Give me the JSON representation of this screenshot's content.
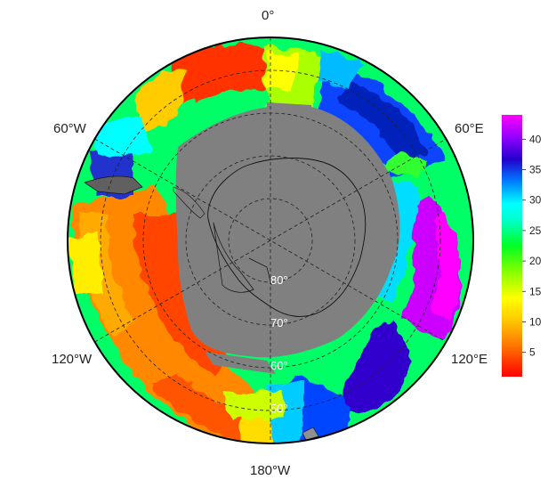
{
  "map": {
    "longitude_labels": {
      "top": "0°",
      "upper_left": "60°W",
      "upper_right": "60°E",
      "lower_left": "120°W",
      "lower_right": "120°E",
      "bottom": "180°W"
    },
    "latitude_labels": [
      "80°",
      "70°",
      "60°",
      "50°"
    ],
    "projection": "south-polar stereographic",
    "land_color": "#808080",
    "frame_color": "#000000"
  },
  "colorbar": {
    "ticks": [
      "5",
      "10",
      "15",
      "20",
      "25",
      "30",
      "35",
      "40"
    ],
    "min": 1,
    "max": 44,
    "colors": [
      "#ff0000",
      "#ffaa00",
      "#ffff00",
      "#aaff00",
      "#00ff33",
      "#00ffff",
      "#0066ff",
      "#3300cc",
      "#aa00ff",
      "#ff00ff"
    ]
  }
}
